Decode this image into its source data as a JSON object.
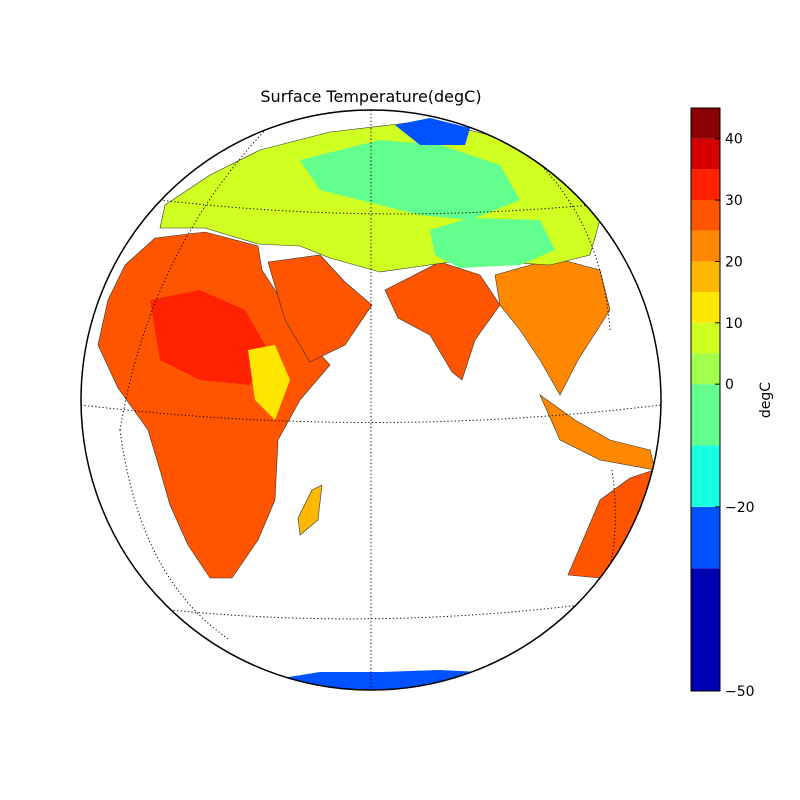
{
  "map": {
    "title": "Surface Temperature(degC)",
    "projection": "orthographic",
    "center": {
      "lat": 0,
      "lon": 60
    },
    "land_fill_values": {
      "africa": 25,
      "sahara-hot": 30,
      "east-africa": 12,
      "arabia": 28,
      "india": 25,
      "southeast-asia": 24,
      "indonesia": 24,
      "australia": 28,
      "europe": 8,
      "siberia": -8,
      "tibet": -2,
      "madagascar": 15,
      "antarctica": -30,
      "yakutia": -25
    }
  },
  "colorbar": {
    "label": "degC",
    "min": -50,
    "max": 45,
    "step": 5,
    "ticks": [
      "−50",
      "−20",
      "0",
      "10",
      "20",
      "30",
      "40"
    ],
    "tick_values": [
      -50,
      -20,
      0,
      10,
      20,
      30,
      40
    ],
    "colors": [
      "#0000b3",
      "#0051ff",
      "#18ffe0",
      "#63ff8e",
      "#a2ff4e",
      "#d0ff22",
      "#ffe600",
      "#ffb800",
      "#ff8800",
      "#ff5500",
      "#ff2200",
      "#d60000",
      "#8b0000"
    ]
  }
}
